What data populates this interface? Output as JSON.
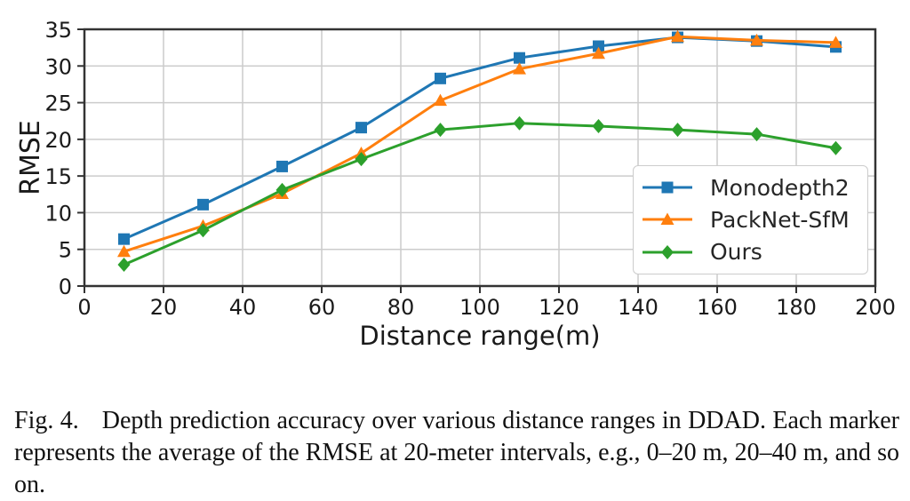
{
  "figure": {
    "caption_label": "Fig. 4.",
    "caption_text": "Depth prediction accuracy over various distance ranges in DDAD. Each marker represents the average of the RMSE at 20-meter intervals, e.g., 0–20 m, 20–40 m, and so on."
  },
  "chart_data": {
    "type": "line",
    "title": "",
    "xlabel": "Distance range(m)",
    "ylabel": "RMSE",
    "xlim": [
      0,
      200
    ],
    "ylim": [
      0,
      35
    ],
    "xticks": [
      0,
      20,
      40,
      60,
      80,
      100,
      120,
      140,
      160,
      180,
      200
    ],
    "yticks": [
      0,
      5,
      10,
      15,
      20,
      25,
      30,
      35
    ],
    "grid": true,
    "legend_position": "lower right",
    "x": [
      10,
      30,
      50,
      70,
      90,
      110,
      130,
      150,
      170,
      190
    ],
    "series": [
      {
        "name": "Monodepth2",
        "color": "#1f77b4",
        "marker": "square",
        "values": [
          6.4,
          11.1,
          16.3,
          21.6,
          28.3,
          31.1,
          32.7,
          33.9,
          33.4,
          32.6
        ]
      },
      {
        "name": "PackNet-SfM",
        "color": "#ff7f0e",
        "marker": "triangle",
        "values": [
          4.7,
          8.2,
          12.6,
          18.1,
          25.3,
          29.6,
          31.7,
          34.0,
          33.5,
          33.2
        ]
      },
      {
        "name": "Ours",
        "color": "#2ca02c",
        "marker": "diamond",
        "values": [
          2.9,
          7.6,
          13.1,
          17.3,
          21.3,
          22.2,
          21.8,
          21.3,
          20.7,
          18.8
        ]
      }
    ],
    "colors": {
      "grid": "#cccccc",
      "spine": "#333333",
      "text": "#1a1a1a",
      "background": "#ffffff"
    }
  }
}
